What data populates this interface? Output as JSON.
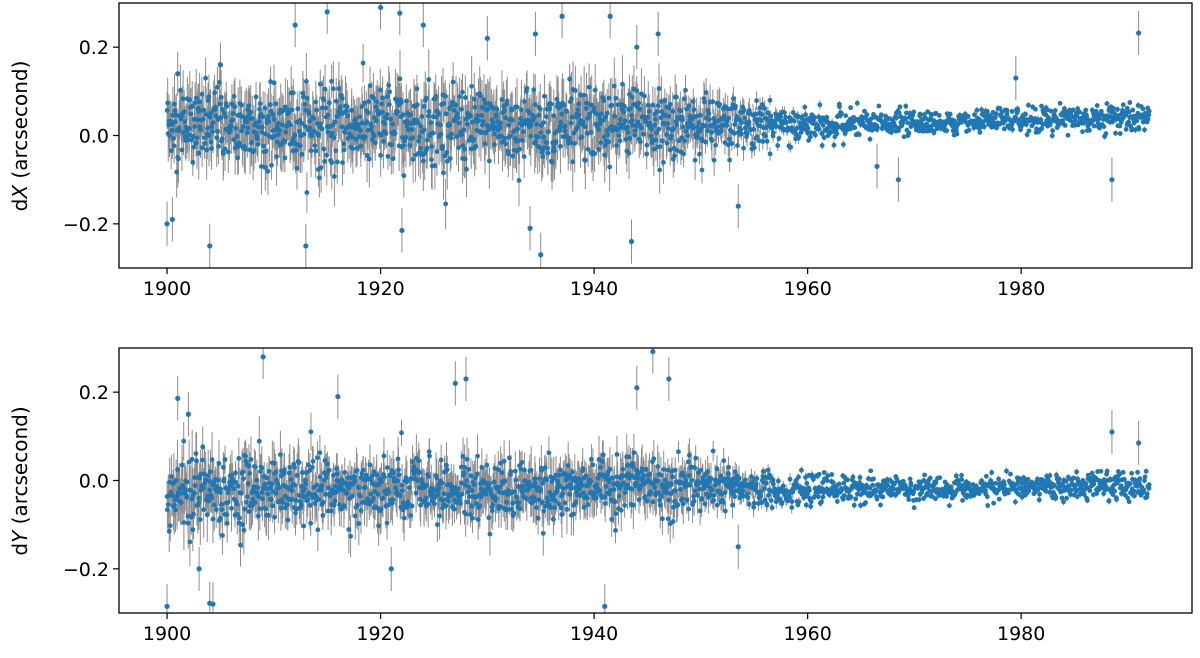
{
  "chart_data": [
    {
      "type": "scatter",
      "title": "",
      "xlabel": "",
      "ylabel": "dX (arcsecond)",
      "ylabel_prefix": "d",
      "ylabel_var": "X",
      "ylabel_unit": " (arcsecond)",
      "xlim": [
        1895.5,
        1996.0
      ],
      "ylim": [
        -0.3,
        0.3
      ],
      "xticks": [
        1900,
        1920,
        1940,
        1960,
        1980
      ],
      "xtick_labels": [
        "1900",
        "1920",
        "1940",
        "1960",
        "1980"
      ],
      "yticks": [
        -0.2,
        0.0,
        0.2
      ],
      "ytick_labels": [
        "−0.2",
        "0.0",
        "0.2"
      ],
      "grid": false,
      "point_color": "#1f77b4",
      "errorbar_color": "#8c8c8c",
      "series": [
        {
          "segments": [
            {
              "x": [
                1900.0,
                1905.0,
                1910.0,
                1915.0,
                1920.0,
                1925.0,
                1930.0,
                1935.0,
                1940.0,
                1945.0,
                1950.0,
                1955.0,
                1957.0,
                1960.0,
                1965.0,
                1970.0,
                1975.0,
                1980.0,
                1985.0,
                1990.0,
                1992.0
              ],
              "y": [
                0.02,
                0.025,
                0.02,
                0.02,
                0.02,
                0.022,
                0.022,
                0.025,
                0.025,
                0.025,
                0.025,
                0.025,
                0.025,
                0.02,
                0.025,
                0.03,
                0.03,
                0.035,
                0.04,
                0.04,
                0.04
              ],
              "spread": [
                0.07,
                0.08,
                0.08,
                0.08,
                0.08,
                0.08,
                0.08,
                0.08,
                0.08,
                0.075,
                0.06,
                0.045,
                0.04,
                0.035,
                0.03,
                0.025,
                0.022,
                0.028,
                0.03,
                0.03,
                0.03
              ],
              "err": [
                0.05,
                0.05,
                0.05,
                0.05,
                0.05,
                0.05,
                0.05,
                0.05,
                0.05,
                0.045,
                0.035,
                0.02,
                0.012,
                0.008,
                0.006,
                0.006,
                0.006,
                0.006,
                0.006,
                0.006,
                0.006
              ]
            }
          ],
          "outliers": [
            {
              "x": 1900.0,
              "y": -0.2
            },
            {
              "x": 1900.5,
              "y": -0.19
            },
            {
              "x": 1901.0,
              "y": 0.14
            },
            {
              "x": 1904.0,
              "y": -0.25
            },
            {
              "x": 1905.0,
              "y": 0.16
            },
            {
              "x": 1912.0,
              "y": 0.25
            },
            {
              "x": 1913.0,
              "y": -0.25
            },
            {
              "x": 1915.0,
              "y": 0.28
            },
            {
              "x": 1920.0,
              "y": 0.29
            },
            {
              "x": 1921.8,
              "y": 0.277
            },
            {
              "x": 1922.0,
              "y": -0.215
            },
            {
              "x": 1924.0,
              "y": 0.25
            },
            {
              "x": 1930.0,
              "y": 0.22
            },
            {
              "x": 1934.0,
              "y": -0.21
            },
            {
              "x": 1934.5,
              "y": 0.23
            },
            {
              "x": 1935.0,
              "y": -0.27
            },
            {
              "x": 1937.0,
              "y": 0.27
            },
            {
              "x": 1941.5,
              "y": 0.27
            },
            {
              "x": 1943.5,
              "y": -0.24
            },
            {
              "x": 1944.0,
              "y": 0.2
            },
            {
              "x": 1946.0,
              "y": 0.23
            },
            {
              "x": 1953.5,
              "y": -0.16
            },
            {
              "x": 1966.5,
              "y": -0.07
            },
            {
              "x": 1968.5,
              "y": -0.1
            },
            {
              "x": 1979.5,
              "y": 0.13
            },
            {
              "x": 1988.5,
              "y": -0.1
            },
            {
              "x": 1991.0,
              "y": 0.232
            }
          ]
        }
      ]
    },
    {
      "type": "scatter",
      "title": "",
      "xlabel": "",
      "ylabel": "dY (arcsecond)",
      "ylabel_prefix": "d",
      "ylabel_var": "Y",
      "ylabel_unit": " (arcsecond)",
      "xlim": [
        1895.5,
        1996.0
      ],
      "ylim": [
        -0.3,
        0.3
      ],
      "xticks": [
        1900,
        1920,
        1940,
        1960,
        1980
      ],
      "xtick_labels": [
        "1900",
        "1920",
        "1940",
        "1960",
        "1980"
      ],
      "yticks": [
        -0.2,
        0.0,
        0.2
      ],
      "ytick_labels": [
        "−0.2",
        "0.0",
        "0.2"
      ],
      "grid": false,
      "point_color": "#1f77b4",
      "errorbar_color": "#8c8c8c",
      "series": [
        {
          "segments": [
            {
              "x": [
                1900.0,
                1905.0,
                1910.0,
                1915.0,
                1920.0,
                1925.0,
                1930.0,
                1935.0,
                1940.0,
                1945.0,
                1950.0,
                1955.0,
                1957.0,
                1960.0,
                1965.0,
                1970.0,
                1975.0,
                1980.0,
                1985.0,
                1990.0,
                1992.0
              ],
              "y": [
                -0.02,
                -0.02,
                -0.02,
                -0.02,
                -0.02,
                -0.02,
                -0.02,
                -0.02,
                -0.01,
                -0.01,
                -0.02,
                -0.02,
                -0.02,
                -0.02,
                -0.02,
                -0.02,
                -0.02,
                -0.015,
                -0.015,
                -0.01,
                -0.01
              ],
              "spread": [
                0.08,
                0.08,
                0.07,
                0.065,
                0.065,
                0.065,
                0.06,
                0.06,
                0.06,
                0.06,
                0.05,
                0.04,
                0.035,
                0.03,
                0.028,
                0.025,
                0.025,
                0.025,
                0.025,
                0.03,
                0.03
              ],
              "err": [
                0.05,
                0.045,
                0.04,
                0.04,
                0.04,
                0.04,
                0.04,
                0.04,
                0.04,
                0.04,
                0.03,
                0.018,
                0.012,
                0.008,
                0.006,
                0.006,
                0.006,
                0.006,
                0.006,
                0.006,
                0.006
              ]
            }
          ],
          "outliers": [
            {
              "x": 1900.0,
              "y": -0.285
            },
            {
              "x": 1901.0,
              "y": 0.186
            },
            {
              "x": 1902.0,
              "y": 0.15
            },
            {
              "x": 1903.0,
              "y": -0.2
            },
            {
              "x": 1904.0,
              "y": -0.278
            },
            {
              "x": 1904.3,
              "y": -0.28
            },
            {
              "x": 1909.0,
              "y": 0.28
            },
            {
              "x": 1916.0,
              "y": 0.19
            },
            {
              "x": 1921.0,
              "y": -0.2
            },
            {
              "x": 1927.0,
              "y": 0.22
            },
            {
              "x": 1928.0,
              "y": 0.23
            },
            {
              "x": 1941.0,
              "y": -0.285
            },
            {
              "x": 1944.0,
              "y": 0.21
            },
            {
              "x": 1945.5,
              "y": 0.292
            },
            {
              "x": 1947.0,
              "y": 0.23
            },
            {
              "x": 1953.5,
              "y": -0.15
            },
            {
              "x": 1988.5,
              "y": 0.11
            },
            {
              "x": 1991.0,
              "y": 0.085
            }
          ]
        }
      ]
    }
  ]
}
